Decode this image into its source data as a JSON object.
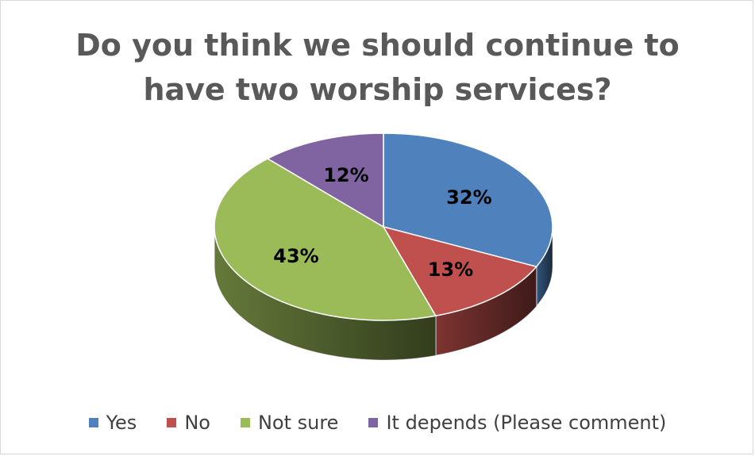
{
  "chart_data": {
    "type": "pie",
    "title": "Do you think we should continue to\nhave two worship services?",
    "categories": [
      "Yes",
      "No",
      "Not sure",
      "It depends (Please comment)"
    ],
    "values": [
      32,
      13,
      43,
      12
    ],
    "labels": [
      "32%",
      "13%",
      "43%",
      "12%"
    ],
    "colors": [
      "#4f81bd",
      "#c0504d",
      "#9bbb59",
      "#8064a2"
    ],
    "legend_position": "bottom",
    "style": "3d"
  }
}
